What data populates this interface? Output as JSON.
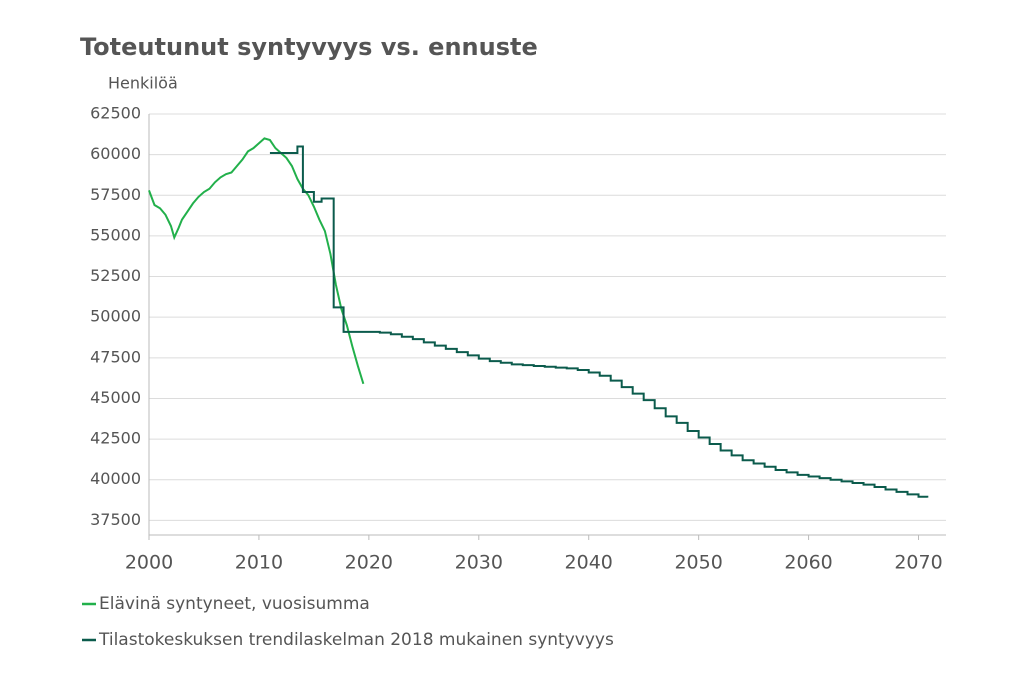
{
  "chart_data": {
    "type": "line",
    "title": "Toteutunut syntyvyys vs. ennuste",
    "y_label": "Henkilöä",
    "xlim": [
      2000,
      2072.5
    ],
    "xticks": [
      2000,
      2010,
      2020,
      2030,
      2040,
      2050,
      2060,
      2070
    ],
    "ylim": [
      36600,
      62500
    ],
    "yticks": [
      37500,
      40000,
      42500,
      45000,
      47500,
      50000,
      52500,
      55000,
      57500,
      60000,
      62500
    ],
    "grid": true,
    "legend": "bottom",
    "series": [
      {
        "name": "Elävinä syntyneet, vuosisumma",
        "color": "#22b04b",
        "step": false,
        "x": [
          2000,
          2000.5,
          2001,
          2001.5,
          2002,
          2002.3,
          2002.7,
          2003,
          2003.5,
          2004,
          2004.5,
          2005,
          2005.5,
          2006,
          2006.5,
          2007,
          2007.5,
          2008,
          2008.5,
          2009,
          2009.5,
          2010,
          2010.5,
          2011,
          2011.5,
          2012,
          2012.5,
          2013,
          2013.5,
          2014,
          2014.5,
          2015,
          2015.5,
          2016,
          2016.5,
          2017,
          2017.5,
          2018,
          2018.5,
          2019,
          2019.5
        ],
        "values": [
          57800,
          56900,
          56700,
          56300,
          55600,
          54900,
          55500,
          56000,
          56500,
          57000,
          57400,
          57700,
          57900,
          58300,
          58600,
          58800,
          58900,
          59300,
          59700,
          60200,
          60400,
          60700,
          61000,
          60900,
          60400,
          60100,
          59800,
          59300,
          58500,
          57900,
          57500,
          56800,
          56000,
          55300,
          53900,
          52000,
          50500,
          49500,
          48200,
          47000,
          45900
        ]
      },
      {
        "name": "Tilastokeskuksen trendilaskelman 2018 mukainen syntyvyys",
        "color": "#0b5b4c",
        "step": true,
        "x": [
          2011,
          2013.5,
          2014,
          2015,
          2015.7,
          2016.8,
          2017.7,
          2021,
          2022,
          2023,
          2024,
          2025,
          2026,
          2027,
          2028,
          2029,
          2030,
          2031,
          2032,
          2033,
          2034,
          2035,
          2036,
          2037,
          2038,
          2039,
          2040,
          2041,
          2042,
          2043,
          2044,
          2045,
          2046,
          2047,
          2048,
          2049,
          2050,
          2051,
          2052,
          2053,
          2054,
          2055,
          2056,
          2057,
          2058,
          2059,
          2060,
          2061,
          2062,
          2063,
          2064,
          2065,
          2066,
          2067,
          2068,
          2069,
          2070,
          2070.8
        ],
        "values": [
          60100,
          60500,
          57700,
          57100,
          57300,
          50600,
          49100,
          49050,
          48950,
          48800,
          48650,
          48450,
          48250,
          48050,
          47850,
          47650,
          47450,
          47300,
          47200,
          47100,
          47050,
          47000,
          46950,
          46900,
          46850,
          46750,
          46600,
          46400,
          46100,
          45700,
          45300,
          44900,
          44400,
          43900,
          43500,
          43000,
          42600,
          42200,
          41800,
          41500,
          41200,
          41000,
          40800,
          40600,
          40450,
          40300,
          40200,
          40100,
          40000,
          39900,
          39800,
          39700,
          39550,
          39400,
          39250,
          39100,
          38950,
          38900
        ]
      }
    ]
  }
}
